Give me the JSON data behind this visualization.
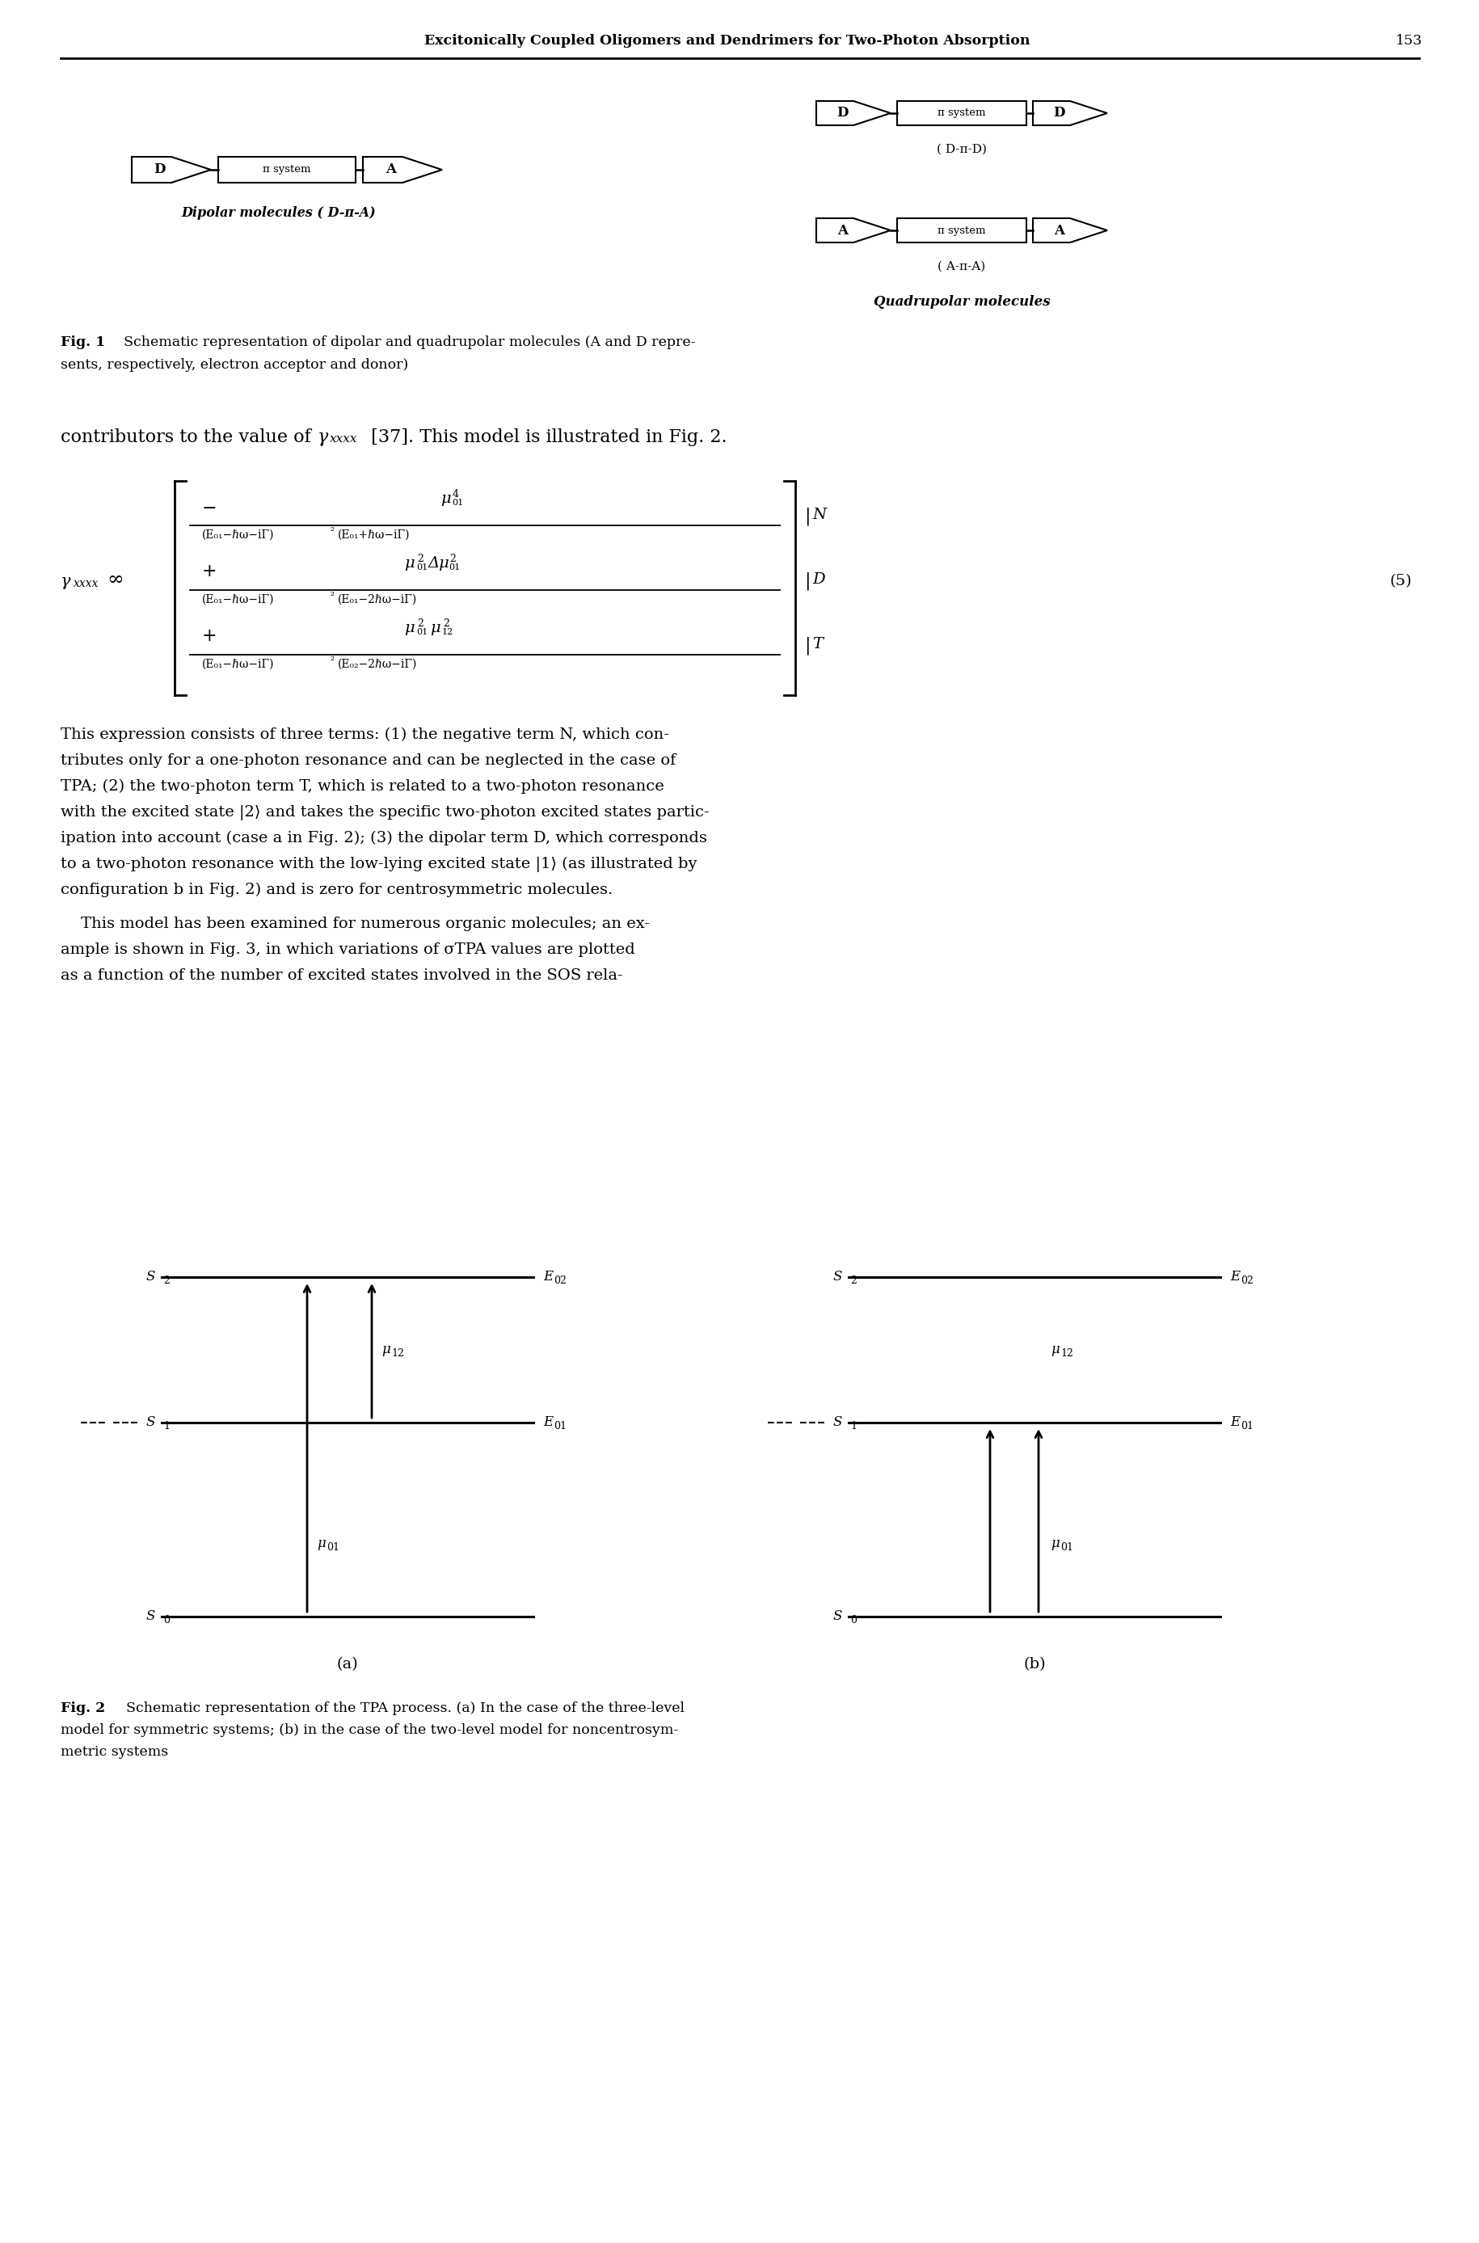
{
  "page_title": "Excitonically Coupled Oligomers and Dendrimers for Two-Photon Absorption",
  "page_number": "153",
  "background_color": "#ffffff",
  "text_color": "#000000",
  "pi_system": "π system",
  "dipolar_label": "Dipolar molecules ( D-π-A)",
  "quadrupolar_label": "Quadrupolar molecules",
  "dpad_label": "( D-π-D)",
  "apia_label": "( A-π-A)",
  "fig1_caption_bold": "Fig. 1",
  "fig1_caption_text": "  Schematic representation of dipolar and quadrupolar molecules (A and D repre-",
  "fig1_caption_line2": "sents, respectively, electron acceptor and donor)",
  "intro_line": "contributors to the value of γ",
  "intro_subscript": "xxxx",
  "intro_rest": " [37]. This model is illustrated in Fig. 2.",
  "eq_number": "(5)",
  "para1_lines": [
    "This expression consists of three terms: (1) the negative term N, which con-",
    "tributes only for a one-photon resonance and can be neglected in the case of",
    "TPA; (2) the two-photon term T, which is related to a two-photon resonance",
    "with the excited state |2⟩ and takes the specific two-photon excited states partic-",
    "ipation into account (case a in Fig. 2); (3) the dipolar term D, which corresponds",
    "to a two-photon resonance with the low-lying excited state |1⟩ (as illustrated by",
    "configuration b in Fig. 2) and is zero for centrosymmetric molecules."
  ],
  "para2_lines": [
    "    This model has been examined for numerous organic molecules; an ex-",
    "ample is shown in Fig. 3, in which variations of σTPA values are plotted",
    "as a function of the number of excited states involved in the SOS rela-"
  ],
  "fig2_caption_bold": "Fig. 2",
  "fig2_caption_text": "  Schematic representation of the TPA process. (a) In the case of the three-level",
  "fig2_caption_line2": "model for symmetric systems; (b) in the case of the two-level model for noncentrosym-",
  "fig2_caption_line3": "metric systems"
}
